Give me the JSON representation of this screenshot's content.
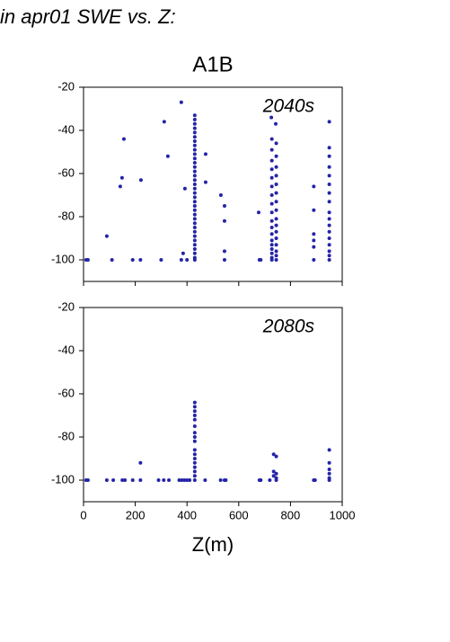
{
  "header": "in apr01 SWE vs. Z:",
  "chart_data": [
    {
      "type": "scatter",
      "title": "A1B",
      "annotation": "2040s",
      "color": "#2424a8",
      "x": [
        430,
        430,
        430,
        430,
        430,
        430,
        430,
        430,
        430,
        430,
        430,
        430,
        430,
        430,
        430,
        430,
        430,
        430,
        430,
        430,
        430,
        430,
        430,
        430,
        430,
        430,
        430,
        430,
        430,
        430,
        430,
        430,
        430,
        430,
        430,
        728,
        728,
        728,
        728,
        728,
        728,
        728,
        728,
        728,
        728,
        728,
        728,
        728,
        728,
        728,
        728,
        728,
        728,
        745,
        745,
        745,
        745,
        745,
        745,
        745,
        745,
        745,
        745,
        745,
        745,
        745,
        745,
        745,
        745,
        950,
        950,
        950,
        950,
        950,
        950,
        950,
        950,
        950,
        950,
        950,
        950,
        950,
        950,
        950,
        950,
        950,
        890,
        890,
        890,
        890,
        890,
        890,
        90,
        156,
        149,
        142,
        222,
        312,
        326,
        378,
        392,
        385,
        472,
        472,
        531,
        545,
        545,
        545,
        677,
        726,
        743,
        10,
        17,
        110,
        190,
        220,
        300,
        378,
        400,
        545,
        680,
        685
      ],
      "values": [
        -33,
        -35,
        -37,
        -39,
        -41,
        -43,
        -45,
        -47,
        -49,
        -51,
        -53,
        -55,
        -57,
        -59,
        -61,
        -63,
        -65,
        -67,
        -69,
        -71,
        -73,
        -75,
        -77,
        -79,
        -81,
        -83,
        -85,
        -87,
        -89,
        -91,
        -93,
        -95,
        -97,
        -99,
        -100,
        -44,
        -49,
        -54,
        -58,
        -62,
        -66,
        -70,
        -74,
        -78,
        -82,
        -85,
        -88,
        -91,
        -93,
        -95,
        -97,
        -99,
        -100,
        -46,
        -52,
        -57,
        -61,
        -65,
        -69,
        -73,
        -77,
        -81,
        -84,
        -87,
        -90,
        -93,
        -96,
        -98,
        -100,
        -36,
        -48,
        -52,
        -57,
        -61,
        -65,
        -69,
        -73,
        -78,
        -81,
        -84,
        -87,
        -90,
        -93,
        -96,
        -98,
        -100,
        -66,
        -77,
        -88,
        -91,
        -94,
        -100,
        -89,
        -44,
        -62,
        -66,
        -63,
        -36,
        -52,
        -27,
        -67,
        -97,
        -51,
        -64,
        -70,
        -75,
        -82,
        -96,
        -78,
        -34,
        -37,
        -100,
        -100,
        -100,
        -100,
        -100,
        -100,
        -100,
        -100,
        -100,
        -100,
        -100
      ],
      "xlim": [
        0,
        1000
      ],
      "ylim": [
        -110,
        -20
      ],
      "yticks": [
        -20,
        -40,
        -60,
        -80,
        -100
      ]
    },
    {
      "type": "scatter",
      "annotation": "2080s",
      "xlabel": "Z(m)",
      "color": "#2424a8",
      "x": [
        10,
        17,
        90,
        115,
        150,
        160,
        190,
        220,
        290,
        310,
        330,
        370,
        380,
        390,
        400,
        410,
        470,
        530,
        545,
        550,
        680,
        685,
        720,
        745,
        890,
        895,
        950,
        430,
        430,
        430,
        430,
        430,
        430,
        430,
        430,
        430,
        430,
        430,
        430,
        430,
        430,
        430,
        430,
        430,
        220,
        735,
        735,
        735,
        745,
        745,
        745,
        950,
        950,
        950,
        950,
        950
      ],
      "values": [
        -100,
        -100,
        -100,
        -100,
        -100,
        -100,
        -100,
        -100,
        -100,
        -100,
        -100,
        -100,
        -100,
        -100,
        -100,
        -100,
        -100,
        -100,
        -100,
        -100,
        -100,
        -100,
        -100,
        -100,
        -100,
        -100,
        -100,
        -64,
        -66,
        -68,
        -70,
        -72,
        -75,
        -78,
        -80,
        -82,
        -86,
        -88,
        -90,
        -92,
        -94,
        -96,
        -98,
        -100,
        -92,
        -88,
        -96,
        -98,
        -89,
        -97,
        -99,
        -86,
        -92,
        -95,
        -97,
        -99
      ],
      "xlim": [
        0,
        1000
      ],
      "ylim": [
        -110,
        -20
      ],
      "yticks": [
        -20,
        -40,
        -60,
        -80,
        -100
      ],
      "xticks": [
        0,
        200,
        400,
        600,
        800,
        1000
      ]
    }
  ]
}
